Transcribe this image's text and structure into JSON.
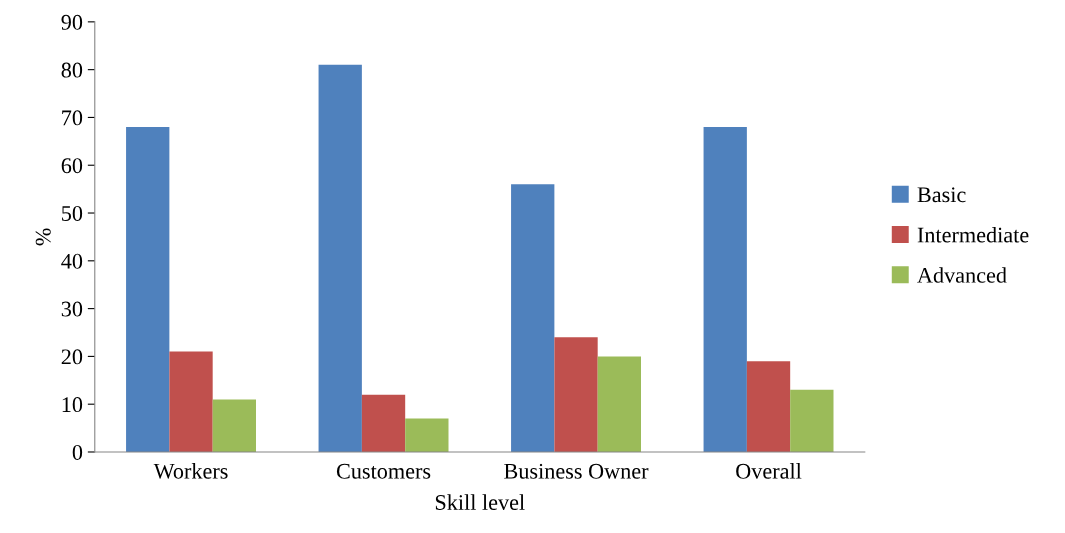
{
  "chart_data": {
    "type": "bar",
    "xlabel": "Skill level",
    "ylabel": "%",
    "categories": [
      "Workers",
      "Customers",
      "Business Owner",
      "Overall"
    ],
    "series": [
      {
        "name": "Basic",
        "color": "#4f81bd",
        "values": [
          68,
          81,
          56,
          68
        ]
      },
      {
        "name": "Intermediate",
        "color": "#c0504d",
        "values": [
          21,
          12,
          24,
          19
        ]
      },
      {
        "name": "Advanced",
        "color": "#9bbb59",
        "values": [
          11,
          7,
          20,
          13
        ]
      }
    ],
    "ylim": [
      0,
      90
    ],
    "yticks": [
      0,
      10,
      20,
      30,
      40,
      50,
      60,
      70,
      80,
      90
    ],
    "grid": false,
    "legend": "right"
  }
}
